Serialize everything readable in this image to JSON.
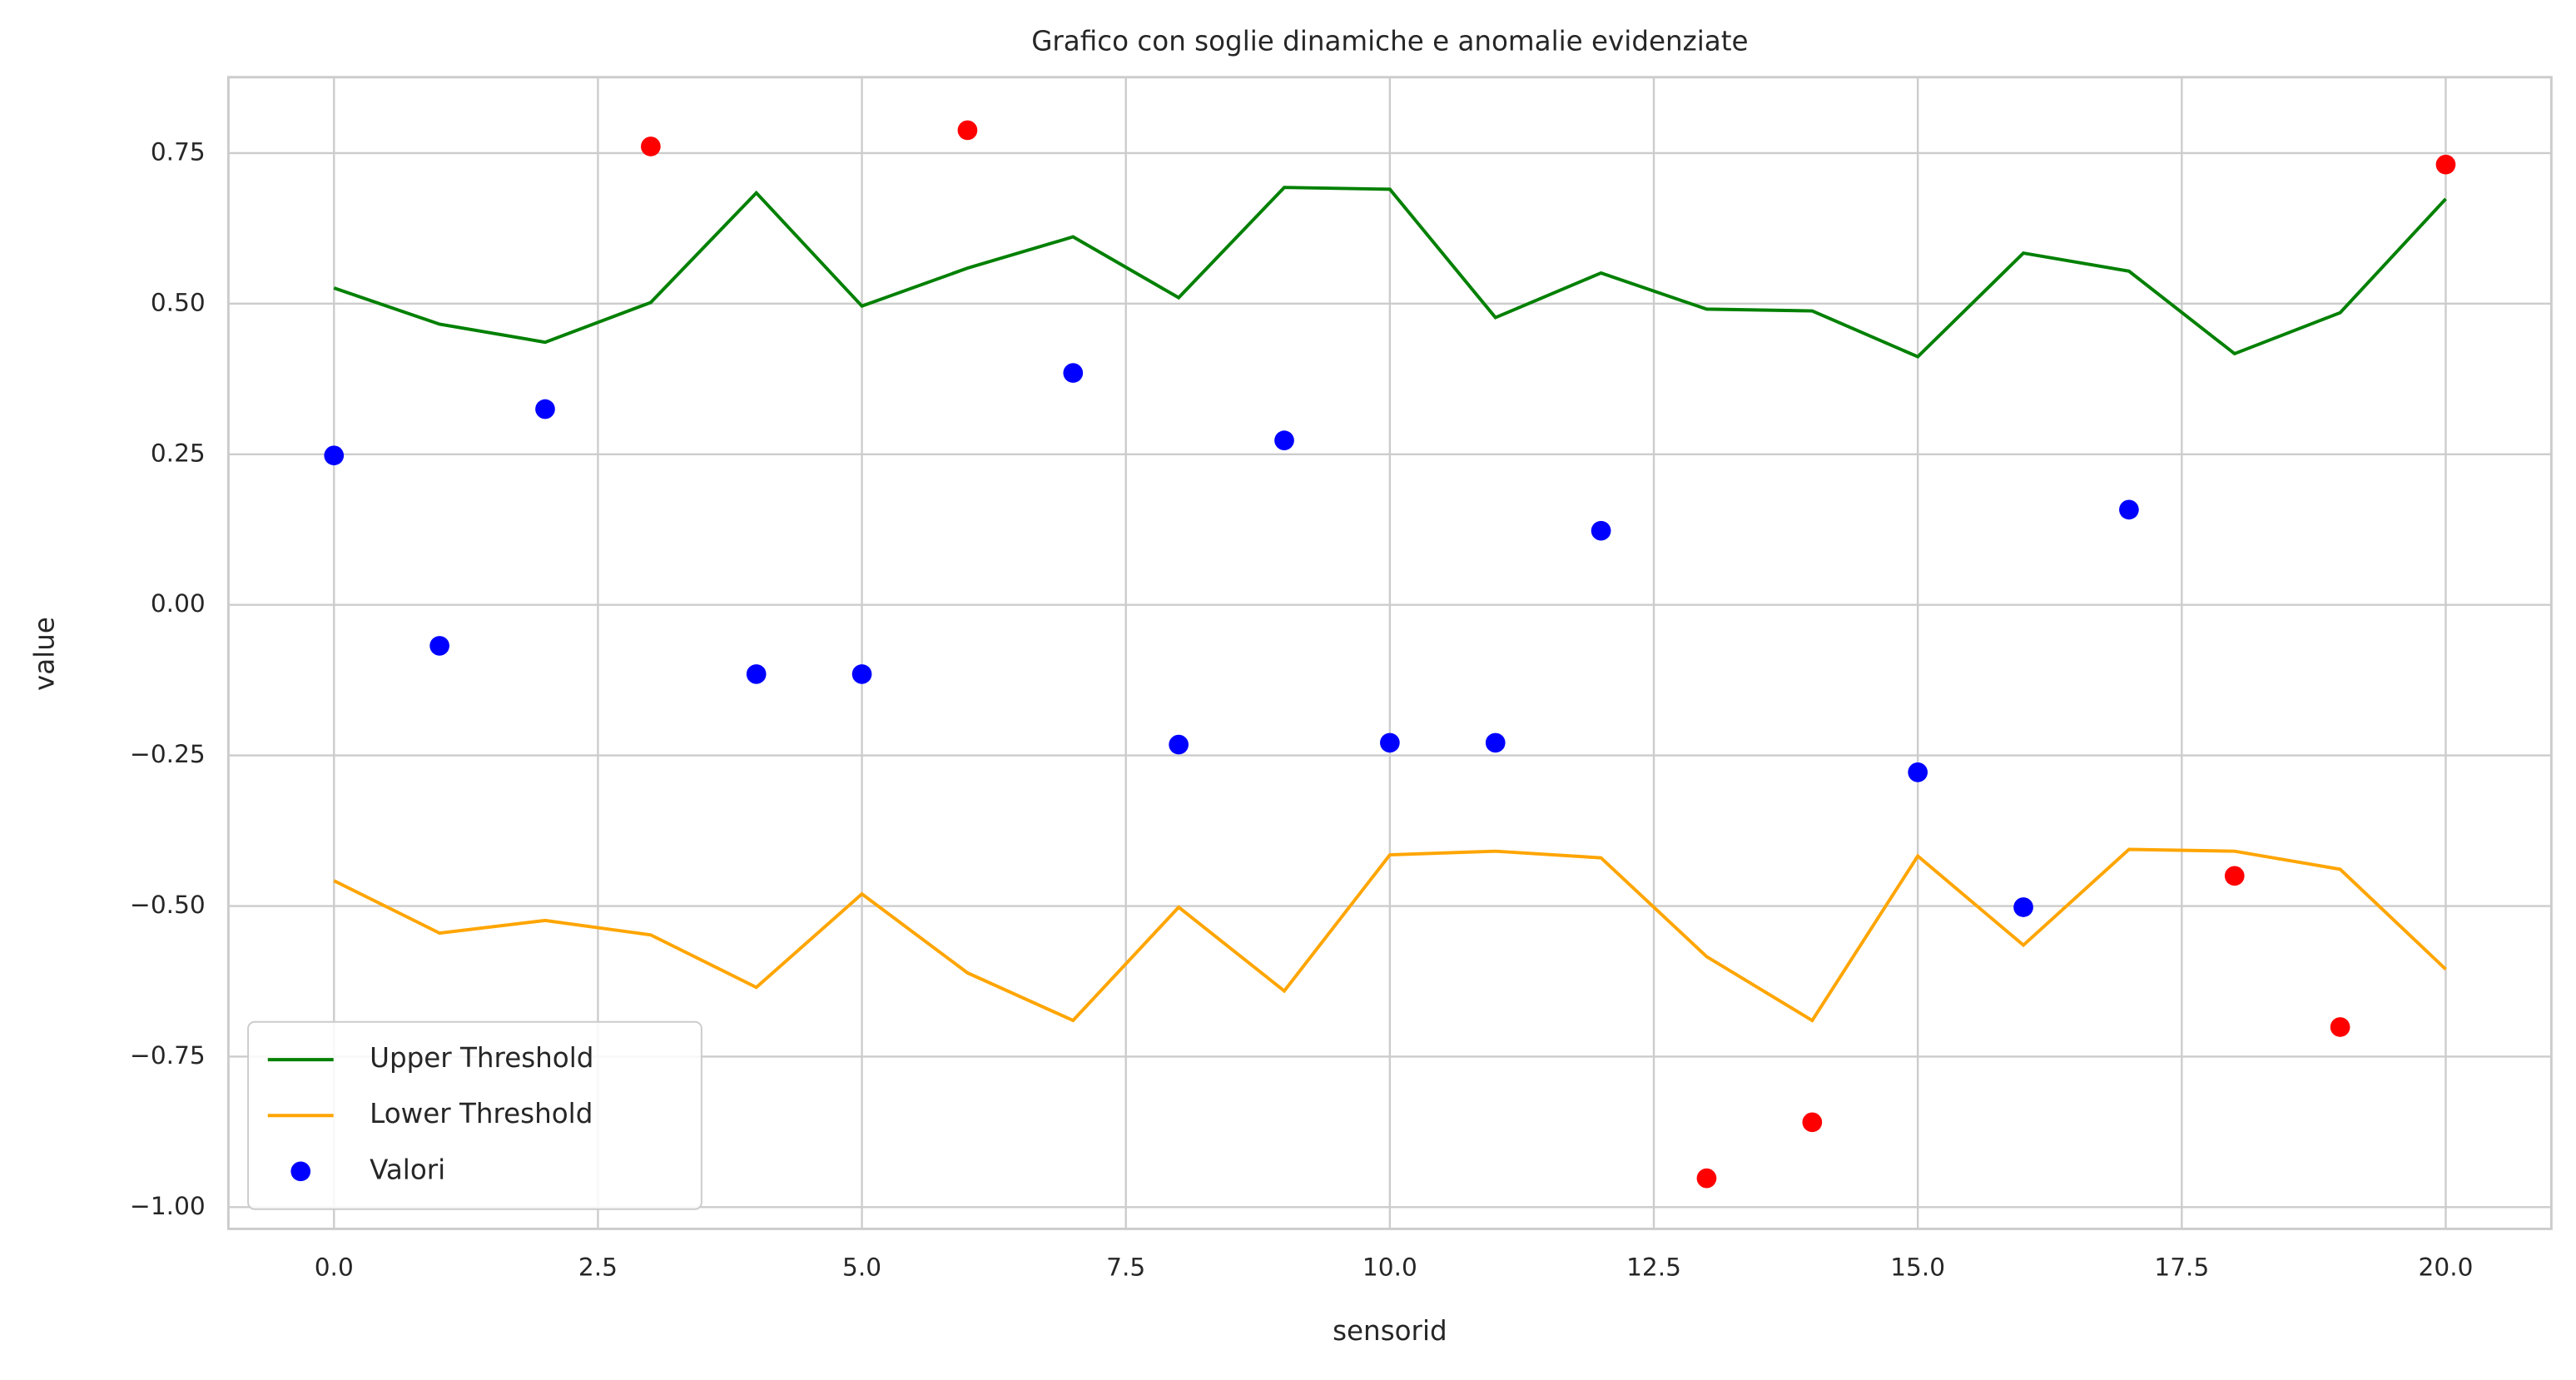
{
  "chart_data": {
    "type": "line",
    "title": "Grafico con soglie dinamiche e anomalie evidenziate",
    "xlabel": "sensorid",
    "ylabel": "value",
    "x": [
      0,
      1,
      2,
      3,
      4,
      5,
      6,
      7,
      8,
      9,
      10,
      11,
      12,
      13,
      14,
      15,
      16,
      17,
      18,
      19,
      20
    ],
    "series": [
      {
        "name": "Upper Threshold",
        "type": "line",
        "color": "#008000",
        "values": [
          0.526,
          0.466,
          0.436,
          0.502,
          0.684,
          0.496,
          0.559,
          0.611,
          0.51,
          0.693,
          0.69,
          0.477,
          0.551,
          0.491,
          0.488,
          0.412,
          0.584,
          0.554,
          0.417,
          0.485,
          0.674
        ]
      },
      {
        "name": "Lower Threshold",
        "type": "line",
        "color": "#FFA500",
        "values": [
          -0.458,
          -0.545,
          -0.524,
          -0.548,
          -0.635,
          -0.48,
          -0.611,
          -0.69,
          -0.502,
          -0.641,
          -0.415,
          -0.409,
          -0.42,
          -0.584,
          -0.69,
          -0.417,
          -0.565,
          -0.406,
          -0.409,
          -0.439,
          -0.605
        ]
      },
      {
        "name": "Valori",
        "type": "scatter",
        "color": "#0000FF",
        "values": [
          0.248,
          -0.068,
          0.325,
          0.761,
          -0.115,
          -0.115,
          0.788,
          0.385,
          -0.232,
          0.273,
          -0.229,
          -0.229,
          0.123,
          -0.952,
          -0.859,
          -0.278,
          -0.502,
          0.158,
          -0.45,
          -0.701,
          0.731
        ],
        "colors": [
          "#0000FF",
          "#0000FF",
          "#0000FF",
          "#FF0000",
          "#0000FF",
          "#0000FF",
          "#FF0000",
          "#0000FF",
          "#0000FF",
          "#0000FF",
          "#0000FF",
          "#0000FF",
          "#0000FF",
          "#FF0000",
          "#FF0000",
          "#0000FF",
          "#0000FF",
          "#0000FF",
          "#FF0000",
          "#FF0000",
          "#FF0000"
        ]
      }
    ],
    "xlim": [
      -1.0,
      21.0
    ],
    "xticks": [
      {
        "value": 0,
        "label": "0.0"
      },
      {
        "value": 2.5,
        "label": "2.5"
      },
      {
        "value": 5,
        "label": "5.0"
      },
      {
        "value": 7.5,
        "label": "7.5"
      },
      {
        "value": 10,
        "label": "10.0"
      },
      {
        "value": 12.5,
        "label": "12.5"
      },
      {
        "value": 15,
        "label": "15.0"
      },
      {
        "value": 17.5,
        "label": "17.5"
      },
      {
        "value": 20,
        "label": "20.0"
      }
    ],
    "ylim": [
      -1.036,
      0.876
    ],
    "yticks": [
      {
        "value": -1,
        "label": "−1.00"
      },
      {
        "value": -0.75,
        "label": "−0.75"
      },
      {
        "value": -0.5,
        "label": "−0.50"
      },
      {
        "value": -0.25,
        "label": "−0.25"
      },
      {
        "value": 0,
        "label": "0.00"
      },
      {
        "value": 0.25,
        "label": "0.25"
      },
      {
        "value": 0.5,
        "label": "0.50"
      },
      {
        "value": 0.75,
        "label": "0.75"
      }
    ],
    "grid": true,
    "legend": "lower left"
  }
}
